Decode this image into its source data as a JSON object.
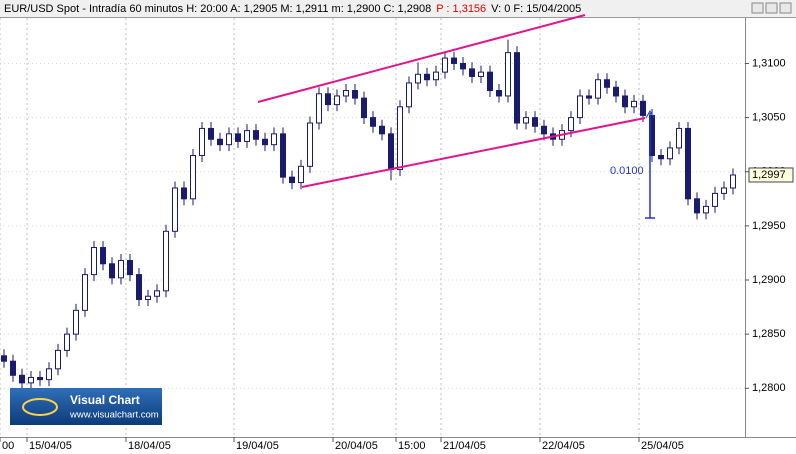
{
  "chart_data": {
    "type": "candlestick",
    "header": [
      {
        "text": "EUR/USD Spot - Intradía 60 minutos  H: 20:00  A: 1,2905  M: 1,2911  m: 1,2900  C: 1,2908",
        "color": "#000000"
      },
      {
        "text": "P : 1,3156",
        "color": "#e00000"
      },
      {
        "text": "V: 0  F: 15/04/2005",
        "color": "#000000"
      }
    ],
    "categories": [
      "00",
      null,
      null,
      "15/04/05",
      null,
      null,
      null,
      null,
      null,
      null,
      null,
      null,
      null,
      null,
      "18/04/05",
      null,
      null,
      null,
      null,
      null,
      null,
      null,
      null,
      null,
      null,
      null,
      "19/04/05",
      null,
      null,
      null,
      null,
      null,
      null,
      null,
      null,
      null,
      null,
      "20/04/05",
      null,
      null,
      null,
      null,
      null,
      null,
      "15:00",
      null,
      null,
      null,
      null,
      "21/04/05",
      null,
      null,
      null,
      null,
      null,
      null,
      null,
      null,
      null,
      null,
      "22/04/05",
      null,
      null,
      null,
      null,
      null,
      null,
      null,
      null,
      null,
      null,
      "25/04/05",
      null,
      null,
      null,
      null,
      null,
      null,
      null,
      null,
      null,
      null
    ],
    "open": [
      1.283,
      1.2825,
      1.2812,
      1.2805,
      1.281,
      1.2808,
      1.2818,
      1.2835,
      1.285,
      1.2872,
      1.2905,
      1.293,
      1.2915,
      1.2902,
      1.2918,
      1.2905,
      1.2882,
      1.2885,
      1.289,
      1.2945,
      1.2985,
      1.2975,
      1.3015,
      1.304,
      1.303,
      1.3025,
      1.3035,
      1.3028,
      1.3038,
      1.303,
      1.3025,
      1.3035,
      1.2995,
      1.299,
      1.3005,
      1.3045,
      1.3072,
      1.3062,
      1.307,
      1.3075,
      1.3068,
      1.305,
      1.3042,
      1.3035,
      1.3002,
      1.306,
      1.3082,
      1.309,
      1.3085,
      1.3092,
      1.3105,
      1.31,
      1.3095,
      1.3088,
      1.3092,
      1.3075,
      1.307,
      1.311,
      1.3045,
      1.305,
      1.3042,
      1.3035,
      1.303,
      1.3038,
      1.305,
      1.307,
      1.3068,
      1.3085,
      1.3078,
      1.307,
      1.306,
      1.3065,
      1.3052,
      1.3015,
      1.3012,
      1.3022,
      1.304,
      1.2975,
      1.2962,
      1.2968,
      1.298,
      1.2985
    ],
    "high": [
      1.2836,
      1.2831,
      1.2818,
      1.2816,
      1.2816,
      1.2824,
      1.2841,
      1.2856,
      1.2878,
      1.2911,
      1.2936,
      1.2936,
      1.2921,
      1.2924,
      1.2924,
      1.2911,
      1.2891,
      1.2896,
      1.2951,
      1.2991,
      1.2991,
      1.3021,
      1.3046,
      1.3046,
      1.3036,
      1.3041,
      1.3041,
      1.3044,
      1.3044,
      1.3036,
      1.3041,
      1.3041,
      1.3001,
      1.3011,
      1.3051,
      1.3078,
      1.3078,
      1.3076,
      1.3081,
      1.3081,
      1.3074,
      1.3056,
      1.3048,
      1.3041,
      1.3066,
      1.3088,
      1.3101,
      1.3096,
      1.3098,
      1.3111,
      1.3111,
      1.3106,
      1.3101,
      1.3098,
      1.3098,
      1.3081,
      1.3122,
      1.3116,
      1.3056,
      1.3056,
      1.3048,
      1.3041,
      1.3044,
      1.3056,
      1.3076,
      1.3076,
      1.3091,
      1.3091,
      1.3084,
      1.3076,
      1.3071,
      1.3071,
      1.3058,
      1.3021,
      1.3028,
      1.3046,
      1.3046,
      1.2981,
      1.2974,
      1.2986,
      1.2991,
      1.3003
    ],
    "low": [
      1.2819,
      1.2806,
      1.2799,
      1.2799,
      1.2802,
      1.2802,
      1.2812,
      1.2829,
      1.2844,
      1.2866,
      1.2899,
      1.2909,
      1.2896,
      1.2896,
      1.2899,
      1.2876,
      1.2876,
      1.2879,
      1.2884,
      1.2939,
      1.2969,
      1.2969,
      1.3009,
      1.3024,
      1.3019,
      1.3019,
      1.3022,
      1.3022,
      1.3024,
      1.3019,
      1.3019,
      1.2989,
      1.2984,
      1.2984,
      1.2999,
      1.3039,
      1.3056,
      1.3056,
      1.3064,
      1.3062,
      1.3044,
      1.3036,
      1.3029,
      1.2992,
      1.2996,
      1.3054,
      1.3076,
      1.3079,
      1.3079,
      1.3086,
      1.3094,
      1.3089,
      1.3082,
      1.3082,
      1.3069,
      1.3064,
      1.3064,
      1.3039,
      1.3039,
      1.3036,
      1.3029,
      1.3024,
      1.3024,
      1.3032,
      1.3044,
      1.3062,
      1.3062,
      1.3072,
      1.3064,
      1.3054,
      1.3054,
      1.3046,
      1.3009,
      1.3006,
      1.3006,
      1.3016,
      1.2969,
      1.2956,
      1.2956,
      1.2962,
      1.2974,
      1.2979
    ],
    "close": [
      1.2825,
      1.2812,
      1.2805,
      1.281,
      1.2808,
      1.2818,
      1.2835,
      1.285,
      1.2872,
      1.2905,
      1.293,
      1.2915,
      1.2902,
      1.2918,
      1.2905,
      1.2882,
      1.2885,
      1.289,
      1.2945,
      1.2985,
      1.2975,
      1.3015,
      1.304,
      1.303,
      1.3025,
      1.3035,
      1.3028,
      1.3038,
      1.303,
      1.3025,
      1.3035,
      1.2995,
      1.299,
      1.3005,
      1.3045,
      1.3072,
      1.3062,
      1.307,
      1.3075,
      1.3068,
      1.305,
      1.3042,
      1.3035,
      1.3002,
      1.306,
      1.3082,
      1.309,
      1.3085,
      1.3092,
      1.3105,
      1.31,
      1.3095,
      1.3088,
      1.3092,
      1.3075,
      1.307,
      1.311,
      1.3045,
      1.305,
      1.3042,
      1.3035,
      1.303,
      1.3038,
      1.305,
      1.307,
      1.3068,
      1.3085,
      1.3078,
      1.307,
      1.306,
      1.3065,
      1.3052,
      1.3015,
      1.3012,
      1.3022,
      1.304,
      1.2975,
      1.2962,
      1.2968,
      1.298,
      1.2985,
      1.2997
    ],
    "up_color": "#ffffff",
    "down_color": "#1a1a6e",
    "line_color": "#1a1a6e",
    "ylim": [
      1.2755,
      1.3142
    ],
    "yticks": [
      {
        "value": 1.28,
        "label": "1,2800"
      },
      {
        "value": 1.285,
        "label": "1,2850"
      },
      {
        "value": 1.29,
        "label": "1,2900"
      },
      {
        "value": 1.295,
        "label": "1,2950"
      },
      {
        "value": 1.3,
        "label": "1,3000"
      },
      {
        "value": 1.305,
        "label": "1,3050"
      },
      {
        "value": 1.31,
        "label": "1,3100"
      }
    ],
    "last_price": {
      "value": 1.2997,
      "label": "1,2997"
    },
    "grid": true,
    "annotation": "0.0100",
    "logo": {
      "title": "Visual Chart",
      "url": "www.visualchart.com"
    }
  }
}
